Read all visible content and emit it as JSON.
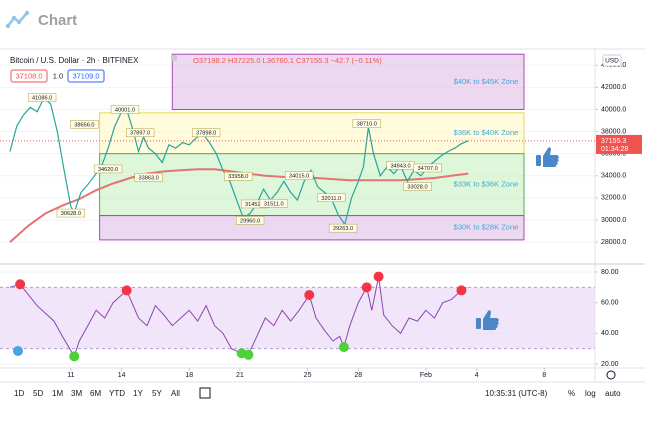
{
  "header": {
    "logo": "Chart"
  },
  "chart_data": [
    {
      "type": "line",
      "title": "Bitcoin / U.S. Dollar · 2h · BITFINEX",
      "ohlc_text": "O37198.2 H37225.0 L36760.1 C37155.3 −42.7 (−0.11%)",
      "inputs": [
        "37108.0",
        "1.0",
        "37109.0"
      ],
      "currency": "USD",
      "color": "#26a69a",
      "x": [
        7.4,
        7.8,
        8.2,
        8.6,
        9.0,
        9.4,
        9.8,
        10.2,
        10.6,
        11.0,
        11.2,
        11.6,
        12.0,
        12.4,
        12.8,
        13.2,
        13.6,
        14.0,
        14.3,
        14.7,
        15.0,
        15.3,
        15.6,
        16.0,
        16.4,
        16.8,
        17.2,
        17.6,
        18.0,
        18.4,
        18.8,
        19.2,
        19.6,
        20.0,
        20.4,
        20.8,
        21.2,
        21.6,
        22.0,
        22.4,
        22.8,
        23.2,
        23.6,
        24.0,
        24.4,
        24.8,
        25.2,
        25.6,
        26.0,
        26.4,
        26.8,
        27.2,
        27.6,
        28.0,
        28.3,
        28.6,
        28.9,
        29.3,
        29.7,
        30.1,
        30.5,
        30.9,
        31.3,
        31.7,
        32.1,
        32.5,
        32.9,
        33.3,
        33.7,
        34.1,
        34.5
      ],
      "values": [
        36200,
        38500,
        39500,
        40200,
        39800,
        41000,
        40500,
        38000,
        34500,
        31200,
        30700,
        32500,
        33200,
        34000,
        34800,
        36500,
        38500,
        39800,
        40000,
        38000,
        36200,
        37500,
        36500,
        36000,
        35200,
        36800,
        36500,
        37000,
        36800,
        37400,
        37800,
        37000,
        36000,
        34500,
        33500,
        31800,
        30200,
        30600,
        31500,
        32800,
        31800,
        32500,
        33500,
        32500,
        31800,
        33500,
        34500,
        33000,
        32500,
        32000,
        30500,
        29600,
        32000,
        33500,
        34800,
        38400,
        36000,
        34000,
        34800,
        34200,
        34900,
        33500,
        34500,
        34000,
        34800,
        35300,
        35800,
        36200,
        36500,
        36900,
        37155.3
      ],
      "ma": {
        "color": "#e57373",
        "x": [
          7.4,
          8.5,
          9.5,
          10.5,
          11.5,
          12.5,
          13.5,
          14.5,
          15.5,
          16.5,
          17.5,
          18.5,
          19.5,
          20.5,
          21.5,
          22.5,
          23.5,
          24.5,
          25.5,
          26.5,
          27.5,
          28.5,
          29.5,
          30.5,
          31.5,
          32.5,
          33.5,
          34.5
        ],
        "values": [
          28000,
          29500,
          30600,
          31300,
          31900,
          32700,
          33300,
          33800,
          34200,
          34400,
          34500,
          34600,
          34600,
          34400,
          34200,
          34000,
          33900,
          33800,
          33800,
          33700,
          33600,
          33600,
          33600,
          33600,
          33700,
          33800,
          34000,
          34200
        ]
      },
      "xlim": [
        7.4,
        42.0
      ],
      "ylim": [
        26200,
        45200
      ],
      "yticks": [
        {
          "value": 28000,
          "label": "28000.0"
        },
        {
          "value": 30000,
          "label": "30000.0"
        },
        {
          "value": 32000,
          "label": "32000.0"
        },
        {
          "value": 34000,
          "label": "34000.0"
        },
        {
          "value": 36000,
          "label": "36000.0"
        },
        {
          "value": 38000,
          "label": "38000.0"
        },
        {
          "value": 40000,
          "label": "40000.0"
        },
        {
          "value": 42000,
          "label": "42000.0"
        },
        {
          "value": 44000,
          "label": "44000.0"
        }
      ],
      "grid": true,
      "zones": [
        {
          "label": "$40K to $45K Zone",
          "lo": 40000,
          "hi": 45000,
          "x0": 17.0,
          "x1": 37.8,
          "color": "#e1bee7",
          "border": "#ab47bc",
          "label_color": "#3fa9d6"
        },
        {
          "label": "$36K to $40K Zone",
          "lo": 36000,
          "hi": 39700,
          "x0": 12.7,
          "x1": 37.8,
          "color": "#fff9c4",
          "border": "#e6d95a",
          "label_color": "#3fa9d6"
        },
        {
          "label": "$33K to $36K Zone",
          "lo": 30400,
          "hi": 36000,
          "x0": 12.7,
          "x1": 37.8,
          "color": "#c8f0c0",
          "border": "#4caf50",
          "label_color": "#3fa9d6"
        },
        {
          "label": "$30K to $28K Zone",
          "lo": 28200,
          "hi": 30400,
          "x0": 12.7,
          "x1": 37.8,
          "color": "#e1bee7",
          "border": "#ab47bc",
          "label_color": "#3fa9d6"
        }
      ],
      "annotations": [
        {
          "x": 9.3,
          "value": {
            "value": 41086,
            "label": "41086.0"
          }
        },
        {
          "x": 11.8,
          "value": {
            "value": 38656,
            "label": "38656.0"
          }
        },
        {
          "x": 14.2,
          "value": {
            "value": 40001,
            "label": "40001.0"
          }
        },
        {
          "x": 13.2,
          "value": {
            "value": 34620,
            "label": "34620.0"
          }
        },
        {
          "x": 15.1,
          "value": {
            "value": 37897,
            "label": "37897.0"
          }
        },
        {
          "x": 15.6,
          "value": {
            "value": 33863,
            "label": "33863.0"
          }
        },
        {
          "x": 19.0,
          "value": {
            "value": 37898,
            "label": "37898.0"
          }
        },
        {
          "x": 11.0,
          "value": {
            "value": 30628,
            "label": "30628.0"
          }
        },
        {
          "x": 20.9,
          "value": {
            "value": 33958,
            "label": "33958.0"
          }
        },
        {
          "x": 21.9,
          "value": {
            "value": 31452,
            "label": "31452.0"
          }
        },
        {
          "x": 23.0,
          "value": {
            "value": 31511,
            "label": "31511.0"
          }
        },
        {
          "x": 21.6,
          "value": {
            "value": 29960,
            "label": "29960.0"
          }
        },
        {
          "x": 24.5,
          "value": {
            "value": 34015,
            "label": "34015.0"
          }
        },
        {
          "x": 26.4,
          "value": {
            "value": 32011,
            "label": "32011.0"
          }
        },
        {
          "x": 27.1,
          "value": {
            "value": 29263,
            "label": "29263.0"
          }
        },
        {
          "x": 28.5,
          "value": {
            "value": 38710,
            "label": "38710.0"
          }
        },
        {
          "x": 30.5,
          "value": {
            "value": 34943,
            "label": "34943.0"
          }
        },
        {
          "x": 32.1,
          "value": {
            "value": 34707,
            "label": "34707.0"
          }
        },
        {
          "x": 31.5,
          "value": {
            "value": 33028,
            "label": "33028.0"
          }
        }
      ],
      "current_price": 37155.3,
      "countdown": "01:34:28"
    },
    {
      "type": "line",
      "color": "#8e44ad",
      "x": [
        7.4,
        8.0,
        9.0,
        10.0,
        10.5,
        11.2,
        11.5,
        12.0,
        12.5,
        13.0,
        13.5,
        14.0,
        14.3,
        15.0,
        15.5,
        16.0,
        16.5,
        17.0,
        17.5,
        18.0,
        18.5,
        19.0,
        19.5,
        20.0,
        20.5,
        21.1,
        21.5,
        22.0,
        22.5,
        23.0,
        23.5,
        24.0,
        24.5,
        25.1,
        25.5,
        26.0,
        26.5,
        26.9,
        27.15,
        27.5,
        28.0,
        28.5,
        28.8,
        29.2,
        29.5,
        30.0,
        30.5,
        31.0,
        31.5,
        32.0,
        32.5,
        33.0,
        33.5,
        34.1,
        34.4
      ],
      "values": [
        70,
        72,
        58,
        48,
        38,
        25,
        35,
        45,
        55,
        50,
        60,
        65,
        68,
        50,
        45,
        58,
        52,
        45,
        50,
        55,
        48,
        58,
        45,
        40,
        30,
        27,
        26,
        38,
        50,
        45,
        55,
        48,
        55,
        65,
        50,
        42,
        35,
        38,
        31,
        45,
        60,
        70,
        55,
        77,
        52,
        45,
        40,
        50,
        48,
        55,
        50,
        60,
        62,
        68,
        70
      ],
      "xlim": [
        7.4,
        42.0
      ],
      "ylim": [
        17.4,
        83.9
      ],
      "yticks": [
        {
          "value": 20,
          "label": "20.00"
        },
        {
          "value": 40,
          "label": "40.00"
        },
        {
          "value": 60,
          "label": "60.00"
        },
        {
          "value": 80,
          "label": "80.00"
        }
      ],
      "xticks": [
        11,
        14,
        18,
        21,
        25,
        28,
        {
          "value": 32,
          "label": "Feb"
        },
        {
          "value": 35,
          "label": "4"
        },
        {
          "value": 39,
          "label": "8"
        }
      ],
      "band": [
        30,
        70
      ],
      "markers": [
        {
          "x": 8.0,
          "value": 72,
          "color": "#f23645"
        },
        {
          "x": 14.3,
          "value": 68,
          "color": "#f23645"
        },
        {
          "x": 25.1,
          "value": 65,
          "color": "#f23645"
        },
        {
          "x": 28.5,
          "value": 70,
          "color": "#f23645"
        },
        {
          "x": 29.2,
          "value": 77,
          "color": "#f23645"
        },
        {
          "x": 34.1,
          "value": 68,
          "color": "#f23645"
        },
        {
          "x": 11.2,
          "value": 25,
          "color": "#4cd137"
        },
        {
          "x": 21.1,
          "value": 27,
          "color": "#4cd137"
        },
        {
          "x": 21.5,
          "value": 26,
          "color": "#4cd137"
        },
        {
          "x": 27.15,
          "value": 31,
          "color": "#4cd137"
        }
      ]
    }
  ],
  "toolbar": {
    "ranges": [
      "1D",
      "5D",
      "1M",
      "3M",
      "6M",
      "YTD",
      "1Y",
      "5Y",
      "All"
    ],
    "clock": "10:35:31 (UTC-8)",
    "options": [
      "%",
      "log",
      "auto"
    ]
  }
}
